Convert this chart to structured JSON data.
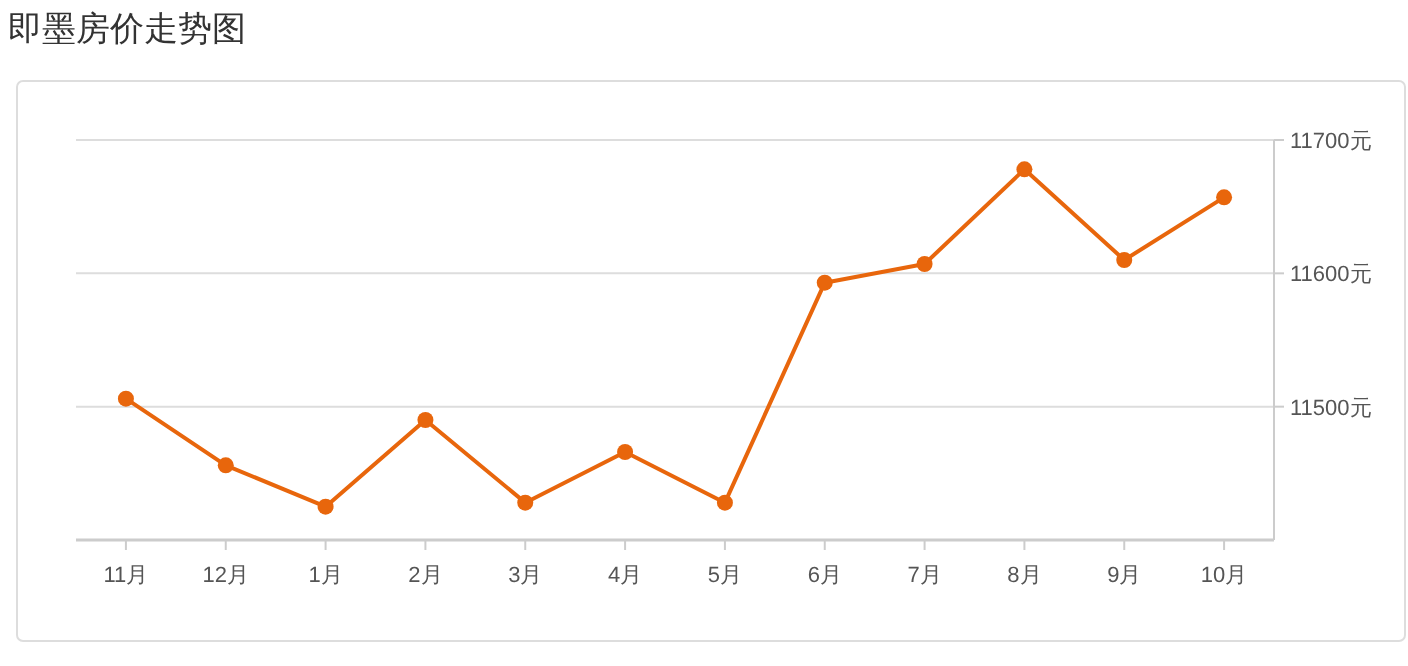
{
  "chart_data": {
    "type": "line",
    "title": "即墨房价走势图",
    "categories": [
      "11月",
      "12月",
      "1月",
      "2月",
      "3月",
      "4月",
      "5月",
      "6月",
      "7月",
      "8月",
      "9月",
      "10月"
    ],
    "series": [
      {
        "color": "#e8660c",
        "values": [
          11506,
          11456,
          11425,
          11490,
          11428,
          11466,
          11428,
          11593,
          11607,
          11678,
          11610,
          11657
        ]
      }
    ],
    "ylim": [
      11400,
      11700
    ],
    "yticks": [
      {
        "value": 11500,
        "label": "11500元"
      },
      {
        "value": 11600,
        "label": "11600元"
      },
      {
        "value": 11700,
        "label": "11700元"
      }
    ],
    "grid": "y",
    "marker": "circle",
    "line_style": "solid"
  }
}
